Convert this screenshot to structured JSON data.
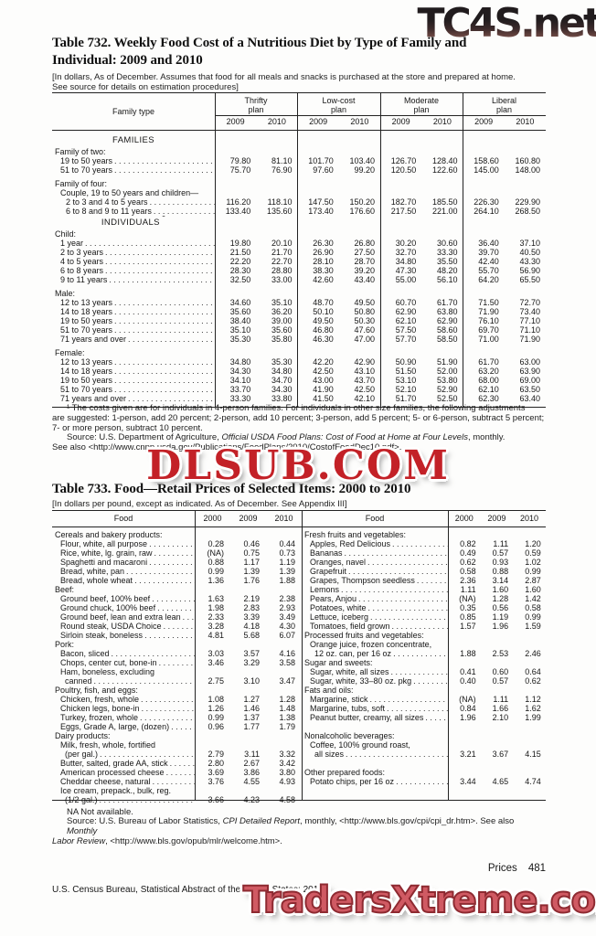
{
  "watermarks": {
    "top": "TC4S.net",
    "middle": "DLSUB.COM",
    "bottom": "TradersXtreme.com"
  },
  "table732": {
    "title_line1": "Table 732. Weekly Food Cost of a Nutritious Diet by Type of Family and",
    "title_line2": "Individual: 2009 and 2010",
    "note_line1": "[In dollars, As of December. Assumes that food for all meals and snacks is purchased at the store and prepared at home.",
    "note_line2": "See source for details on estimation procedures]",
    "stub_header": "Family type",
    "plans": [
      {
        "name": "Thrifty",
        "sub": "plan"
      },
      {
        "name": "Low-cost",
        "sub": "plan"
      },
      {
        "name": "Moderate",
        "sub": "plan"
      },
      {
        "name": "Liberal",
        "sub": "plan"
      }
    ],
    "years": [
      "2009",
      "2010",
      "2009",
      "2010",
      "2009",
      "2010",
      "2009",
      "2010"
    ],
    "rows": [
      {
        "type": "section",
        "label": "FAMILIES"
      },
      {
        "type": "group",
        "label": "Family of two:"
      },
      {
        "type": "data",
        "indent": 1,
        "label": "19 to 50 years",
        "values": [
          "79.80",
          "81.10",
          "101.70",
          "103.40",
          "126.70",
          "128.40",
          "158.60",
          "160.80"
        ]
      },
      {
        "type": "data",
        "indent": 1,
        "label": "51 to 70 years",
        "values": [
          "75.70",
          "76.90",
          "97.60",
          "99.20",
          "120.50",
          "122.60",
          "145.00",
          "148.00"
        ]
      },
      {
        "type": "spacer"
      },
      {
        "type": "group",
        "label": "Family of four:"
      },
      {
        "type": "group",
        "indent": 1,
        "label": "Couple, 19 to 50 years and children—"
      },
      {
        "type": "data",
        "indent": 2,
        "label": "2 to 3 and 4 to 5 years",
        "values": [
          "116.20",
          "118.10",
          "147.50",
          "150.20",
          "182.70",
          "185.50",
          "226.30",
          "229.90"
        ]
      },
      {
        "type": "data",
        "indent": 2,
        "label": "6 to 8 and 9 to 11 years",
        "values": [
          "133.40",
          "135.60",
          "173.40",
          "176.60",
          "217.50",
          "221.00",
          "264.10",
          "268.50"
        ]
      },
      {
        "type": "section",
        "label": "INDIVIDUALS",
        "sup": "1"
      },
      {
        "type": "group",
        "label": "Child:"
      },
      {
        "type": "data",
        "indent": 1,
        "label": "1 year",
        "values": [
          "19.80",
          "20.10",
          "26.30",
          "26.80",
          "30.20",
          "30.60",
          "36.40",
          "37.10"
        ]
      },
      {
        "type": "data",
        "indent": 1,
        "label": "2 to 3 years",
        "values": [
          "21.50",
          "21.70",
          "26.90",
          "27.50",
          "32.70",
          "33.30",
          "39.70",
          "40.50"
        ]
      },
      {
        "type": "data",
        "indent": 1,
        "label": "4 to 5 years",
        "values": [
          "22.20",
          "22.70",
          "28.10",
          "28.70",
          "34.80",
          "35.50",
          "42.40",
          "43.30"
        ]
      },
      {
        "type": "data",
        "indent": 1,
        "label": "6 to 8 years",
        "values": [
          "28.30",
          "28.80",
          "38.30",
          "39.20",
          "47.30",
          "48.20",
          "55.70",
          "56.90"
        ]
      },
      {
        "type": "data",
        "indent": 1,
        "label": "9 to 11 years",
        "values": [
          "32.50",
          "33.00",
          "42.60",
          "43.40",
          "55.00",
          "56.10",
          "64.20",
          "65.50"
        ]
      },
      {
        "type": "spacer"
      },
      {
        "type": "group",
        "label": "Male:"
      },
      {
        "type": "data",
        "indent": 1,
        "label": "12 to 13 years",
        "values": [
          "34.60",
          "35.10",
          "48.70",
          "49.50",
          "60.70",
          "61.70",
          "71.50",
          "72.70"
        ]
      },
      {
        "type": "data",
        "indent": 1,
        "label": "14 to 18 years",
        "values": [
          "35.60",
          "36.20",
          "50.10",
          "50.80",
          "62.90",
          "63.80",
          "71.90",
          "73.40"
        ]
      },
      {
        "type": "data",
        "indent": 1,
        "label": "19 to 50 years",
        "values": [
          "38.40",
          "39.00",
          "49.50",
          "50.30",
          "62.10",
          "62.90",
          "76.10",
          "77.10"
        ]
      },
      {
        "type": "data",
        "indent": 1,
        "label": "51 to 70 years",
        "values": [
          "35.10",
          "35.60",
          "46.80",
          "47.60",
          "57.50",
          "58.60",
          "69.70",
          "71.10"
        ]
      },
      {
        "type": "data",
        "indent": 1,
        "label": "71 years and over",
        "values": [
          "35.30",
          "35.80",
          "46.30",
          "47.00",
          "57.70",
          "58.50",
          "71.00",
          "71.90"
        ]
      },
      {
        "type": "spacer"
      },
      {
        "type": "group",
        "label": "Female:"
      },
      {
        "type": "data",
        "indent": 1,
        "label": "12 to 13 years",
        "values": [
          "34.80",
          "35.30",
          "42.20",
          "42.90",
          "50.90",
          "51.90",
          "61.70",
          "63.00"
        ]
      },
      {
        "type": "data",
        "indent": 1,
        "label": "14 to 18 years",
        "values": [
          "34.30",
          "34.80",
          "42.50",
          "43.10",
          "51.50",
          "52.00",
          "63.20",
          "63.90"
        ]
      },
      {
        "type": "data",
        "indent": 1,
        "label": "19 to 50 years",
        "values": [
          "34.10",
          "34.70",
          "43.00",
          "43.70",
          "53.10",
          "53.80",
          "68.00",
          "69.00"
        ]
      },
      {
        "type": "data",
        "indent": 1,
        "label": "51 to 70 years",
        "values": [
          "33.70",
          "34.30",
          "41.90",
          "42.50",
          "52.10",
          "52.90",
          "62.10",
          "63.50"
        ]
      },
      {
        "type": "data",
        "indent": 1,
        "label": "71 years and over",
        "values": [
          "33.30",
          "33.80",
          "41.50",
          "42.10",
          "51.70",
          "52.50",
          "62.30",
          "63.40"
        ]
      }
    ],
    "footnote_lines": [
      "¹ The costs given are for individuals in 4-person families. For individuals in other size families, the following adjustments",
      "are suggested: 1-person, add 20 percent; 2-person, add 10 percent; 3-person, add 5 percent; 5- or 6-person, subtract 5 percent;",
      "7- or more person, subtract 10 percent."
    ],
    "source_line1": [
      {
        "t": "Source: U.S. Department of Agriculture, "
      },
      {
        "t": "Official USDA Food Plans: Cost of Food at Home at Four Levels",
        "i": true
      },
      {
        "t": ", monthly."
      }
    ],
    "source_line2": [
      {
        "t": "See also <http://www.cnpp.usda.gov/Publications/FoodPlans/2010/CostofFoodDec10.pdf>."
      }
    ]
  },
  "table733": {
    "title": "Table 733. Food—Retail Prices of Selected Items: 2000 to 2010",
    "note": "[In dollars per pound, except as indicated. As of December. See Appendix III]",
    "food_header": "Food",
    "years": [
      "2000",
      "2009",
      "2010"
    ],
    "left_rows": [
      {
        "type": "cat",
        "label": "Cereals and bakery products:"
      },
      {
        "type": "item",
        "label": "Flour, white, all purpose",
        "values": [
          "0.28",
          "0.46",
          "0.44"
        ]
      },
      {
        "type": "item",
        "label": "Rice, white, lg. grain, raw",
        "values": [
          "(NA)",
          "0.75",
          "0.73"
        ]
      },
      {
        "type": "item",
        "label": "Spaghetti and macaroni",
        "values": [
          "0.88",
          "1.17",
          "1.19"
        ]
      },
      {
        "type": "item",
        "label": "Bread, white, pan",
        "values": [
          "0.99",
          "1.39",
          "1.39"
        ]
      },
      {
        "type": "item",
        "label": "Bread, whole wheat",
        "values": [
          "1.36",
          "1.76",
          "1.88"
        ]
      },
      {
        "type": "cat",
        "label": "Beef:"
      },
      {
        "type": "item",
        "label": "Ground beef, 100% beef",
        "values": [
          "1.63",
          "2.19",
          "2.38"
        ]
      },
      {
        "type": "item",
        "label": "Ground chuck, 100% beef",
        "values": [
          "1.98",
          "2.83",
          "2.93"
        ]
      },
      {
        "type": "item",
        "label": "Ground beef, lean and extra lean",
        "values": [
          "2.33",
          "3.39",
          "3.49"
        ]
      },
      {
        "type": "item",
        "label": "Round steak, USDA Choice",
        "values": [
          "3.28",
          "4.18",
          "4.30"
        ]
      },
      {
        "type": "item",
        "label": "Sirloin steak, boneless",
        "values": [
          "4.81",
          "5.68",
          "6.07"
        ]
      },
      {
        "type": "cat",
        "label": "Pork:"
      },
      {
        "type": "item",
        "label": "Bacon, sliced",
        "values": [
          "3.03",
          "3.57",
          "4.16"
        ]
      },
      {
        "type": "item",
        "label": "Chops, center cut, bone-in",
        "values": [
          "3.46",
          "3.29",
          "3.58"
        ]
      },
      {
        "type": "wrap",
        "label": "Ham, boneless, excluding"
      },
      {
        "type": "wrap2",
        "label": "canned",
        "values": [
          "2.75",
          "3.10",
          "3.47"
        ]
      },
      {
        "type": "cat",
        "label": "Poultry, fish, and eggs:"
      },
      {
        "type": "item",
        "label": "Chicken, fresh, whole",
        "values": [
          "1.08",
          "1.27",
          "1.28"
        ]
      },
      {
        "type": "item",
        "label": "Chicken legs, bone-in",
        "values": [
          "1.26",
          "1.46",
          "1.48"
        ]
      },
      {
        "type": "item",
        "label": "Turkey, frozen, whole",
        "values": [
          "0.99",
          "1.37",
          "1.38"
        ]
      },
      {
        "type": "item",
        "label": "Eggs, Grade A, large, (dozen)",
        "values": [
          "0.96",
          "1.77",
          "1.79"
        ]
      },
      {
        "type": "cat",
        "label": "Dairy products:"
      },
      {
        "type": "wrap",
        "label": "Milk, fresh, whole, fortified"
      },
      {
        "type": "wrap2",
        "label": "(per gal.)",
        "values": [
          "2.79",
          "3.11",
          "3.32"
        ]
      },
      {
        "type": "item",
        "label": "Butter, salted, grade AA, stick",
        "values": [
          "2.80",
          "2.67",
          "3.42"
        ]
      },
      {
        "type": "item",
        "label": "American processed cheese",
        "values": [
          "3.69",
          "3.86",
          "3.80"
        ]
      },
      {
        "type": "item",
        "label": "Cheddar cheese, natural",
        "values": [
          "3.76",
          "4.55",
          "4.93"
        ]
      },
      {
        "type": "wrap",
        "label": "Ice cream, prepack., bulk, reg."
      },
      {
        "type": "wrap2",
        "label": "(1/2 gal.)",
        "values": [
          "3.66",
          "4.23",
          "4.58"
        ]
      }
    ],
    "right_rows": [
      {
        "type": "cat",
        "label": "Fresh fruits and vegetables:"
      },
      {
        "type": "item",
        "label": "Apples, Red Delicious",
        "values": [
          "0.82",
          "1.11",
          "1.20"
        ]
      },
      {
        "type": "item",
        "label": "Bananas",
        "values": [
          "0.49",
          "0.57",
          "0.59"
        ]
      },
      {
        "type": "item",
        "label": "Oranges, navel",
        "values": [
          "0.62",
          "0.93",
          "1.02"
        ]
      },
      {
        "type": "item",
        "label": "Grapefruit",
        "values": [
          "0.58",
          "0.88",
          "0.99"
        ]
      },
      {
        "type": "item",
        "label": "Grapes, Thompson seedless",
        "values": [
          "2.36",
          "3.14",
          "2.87"
        ]
      },
      {
        "type": "item",
        "label": "Lemons",
        "values": [
          "1.11",
          "1.60",
          "1.60"
        ]
      },
      {
        "type": "item",
        "label": "Pears, Anjou",
        "values": [
          "(NA)",
          "1.28",
          "1.42"
        ]
      },
      {
        "type": "item",
        "label": "Potatoes, white",
        "values": [
          "0.35",
          "0.56",
          "0.58"
        ]
      },
      {
        "type": "item",
        "label": "Lettuce, iceberg",
        "values": [
          "0.85",
          "1.19",
          "0.99"
        ]
      },
      {
        "type": "item",
        "label": "Tomatoes, field grown",
        "values": [
          "1.57",
          "1.96",
          "1.59"
        ]
      },
      {
        "type": "cat",
        "label": "Processed fruits and vegetables:"
      },
      {
        "type": "wrap",
        "label": "Orange juice, frozen concentrate,"
      },
      {
        "type": "wrap2",
        "label": "12 oz. can, per 16 oz",
        "values": [
          "1.88",
          "2.53",
          "2.46"
        ]
      },
      {
        "type": "cat",
        "label": "Sugar and sweets:"
      },
      {
        "type": "item",
        "label": "Sugar, white, all sizes",
        "values": [
          "0.41",
          "0.60",
          "0.64"
        ]
      },
      {
        "type": "item",
        "label": "Sugar, white, 33–80 oz. pkg",
        "values": [
          "0.40",
          "0.57",
          "0.62"
        ]
      },
      {
        "type": "cat",
        "label": "Fats and oils:"
      },
      {
        "type": "item",
        "label": "Margarine, stick",
        "values": [
          "(NA)",
          "1.11",
          "1.12"
        ]
      },
      {
        "type": "item",
        "label": "Margarine, tubs, soft",
        "values": [
          "0.84",
          "1.66",
          "1.62"
        ]
      },
      {
        "type": "item",
        "label": "Peanut butter, creamy, all sizes",
        "values": [
          "1.96",
          "2.10",
          "1.99"
        ]
      },
      {
        "type": "gap"
      },
      {
        "type": "cat",
        "label": "Nonalcoholic beverages:"
      },
      {
        "type": "wrap",
        "label": "Coffee, 100% ground roast,"
      },
      {
        "type": "wrap2",
        "label": "all sizes",
        "values": [
          "3.21",
          "3.67",
          "4.15"
        ]
      },
      {
        "type": "gap"
      },
      {
        "type": "cat",
        "label": "Other prepared foods:"
      },
      {
        "type": "item",
        "label": "Potato chips, per 16 oz",
        "values": [
          "3.44",
          "4.65",
          "4.74"
        ]
      }
    ],
    "na_note": "NA Not available.",
    "source_line1": [
      {
        "t": "Source: U.S. Bureau of Labor Statistics, "
      },
      {
        "t": "CPI Detailed Report",
        "i": true
      },
      {
        "t": ", monthly, <http://www.bls.gov/cpi/cpi_dr.htm>. See also "
      },
      {
        "t": "Monthly",
        "i": true
      }
    ],
    "source_line2": [
      {
        "t": "Labor Review",
        "i": true
      },
      {
        "t": ", <http://www.bls.gov/opub/mlr/welcome.htm>."
      }
    ]
  },
  "footer": {
    "page_label": "Prices",
    "page_number": "481",
    "credit": "U.S. Census Bureau, Statistical Abstract of the United States: 2012"
  }
}
